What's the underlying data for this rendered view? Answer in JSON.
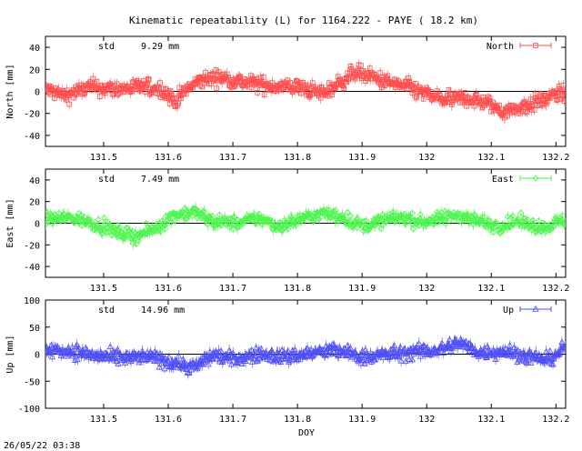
{
  "title": "Kinematic repeatability (L) for 1164.222 - PAYE  ( 18.2 km)",
  "timestamp": "26/05/22 03:38",
  "chart_data": [
    {
      "type": "scatter",
      "component": "North",
      "ylabel": "North [mm]",
      "std_label": "std",
      "std_value": "9.29 mm",
      "legend": "North",
      "color": "#ff4f4f",
      "marker": "square",
      "ylim": [
        -50,
        50
      ],
      "yticks": [
        -40,
        -20,
        0,
        20,
        40
      ],
      "trend": [
        [
          131.41,
          2
        ],
        [
          131.44,
          -4
        ],
        [
          131.48,
          4
        ],
        [
          131.52,
          2
        ],
        [
          131.56,
          4
        ],
        [
          131.59,
          2
        ],
        [
          131.61,
          -9
        ],
        [
          131.63,
          2
        ],
        [
          131.65,
          10
        ],
        [
          131.68,
          13
        ],
        [
          131.72,
          8
        ],
        [
          131.76,
          5
        ],
        [
          131.8,
          4
        ],
        [
          131.84,
          -2
        ],
        [
          131.87,
          10
        ],
        [
          131.89,
          18
        ],
        [
          131.91,
          14
        ],
        [
          131.94,
          8
        ],
        [
          131.97,
          4
        ],
        [
          132.0,
          -3
        ],
        [
          132.03,
          -8
        ],
        [
          132.06,
          -6
        ],
        [
          132.09,
          -10
        ],
        [
          132.12,
          -18
        ],
        [
          132.15,
          -14
        ],
        [
          132.18,
          -8
        ],
        [
          132.2,
          -3
        ],
        [
          132.215,
          -2
        ]
      ],
      "noise": 7
    },
    {
      "type": "scatter",
      "component": "East",
      "ylabel": "East [mm]",
      "std_label": "std",
      "std_value": "7.49 mm",
      "legend": "East",
      "color": "#4ff44f",
      "marker": "diamond",
      "ylim": [
        -50,
        50
      ],
      "yticks": [
        -40,
        -20,
        0,
        20,
        40
      ],
      "trend": [
        [
          131.41,
          4
        ],
        [
          131.45,
          5
        ],
        [
          131.48,
          1
        ],
        [
          131.52,
          -8
        ],
        [
          131.55,
          -12
        ],
        [
          131.58,
          -5
        ],
        [
          131.61,
          8
        ],
        [
          131.64,
          10
        ],
        [
          131.67,
          2
        ],
        [
          131.71,
          0
        ],
        [
          131.74,
          5
        ],
        [
          131.77,
          -3
        ],
        [
          131.81,
          5
        ],
        [
          131.84,
          9
        ],
        [
          131.87,
          6
        ],
        [
          131.9,
          -3
        ],
        [
          131.93,
          2
        ],
        [
          131.96,
          6
        ],
        [
          131.99,
          1
        ],
        [
          132.02,
          4
        ],
        [
          132.05,
          8
        ],
        [
          132.08,
          2
        ],
        [
          132.11,
          -3
        ],
        [
          132.14,
          2
        ],
        [
          132.18,
          -4
        ],
        [
          132.215,
          3
        ]
      ],
      "noise": 6
    },
    {
      "type": "scatter",
      "component": "Up",
      "ylabel": "Up [mm]",
      "std_label": "std",
      "std_value": "14.96 mm",
      "legend": "Up",
      "color": "#4f4ff4",
      "marker": "triangle",
      "ylim": [
        -100,
        100
      ],
      "yticks": [
        -100,
        -50,
        0,
        50,
        100
      ],
      "trend": [
        [
          131.41,
          8
        ],
        [
          131.45,
          6
        ],
        [
          131.49,
          -3
        ],
        [
          131.53,
          -8
        ],
        [
          131.57,
          -5
        ],
        [
          131.61,
          -15
        ],
        [
          131.64,
          -25
        ],
        [
          131.67,
          0
        ],
        [
          131.7,
          -10
        ],
        [
          131.74,
          0
        ],
        [
          131.78,
          -5
        ],
        [
          131.82,
          2
        ],
        [
          131.86,
          8
        ],
        [
          131.9,
          -5
        ],
        [
          131.94,
          0
        ],
        [
          131.98,
          4
        ],
        [
          132.02,
          8
        ],
        [
          132.05,
          22
        ],
        [
          132.08,
          3
        ],
        [
          132.12,
          6
        ],
        [
          132.16,
          -5
        ],
        [
          132.19,
          -10
        ],
        [
          132.215,
          15
        ]
      ],
      "noise": 13
    }
  ],
  "xaxis": {
    "label": "DOY",
    "xlim": [
      131.41,
      132.215
    ],
    "ticks": [
      131.5,
      131.6,
      131.7,
      131.8,
      131.9,
      132,
      132.1,
      132.2
    ],
    "tick_labels": [
      "131.5",
      "131.6",
      "131.7",
      "131.8",
      "131.9",
      "132",
      "132.1",
      "132.2"
    ]
  }
}
